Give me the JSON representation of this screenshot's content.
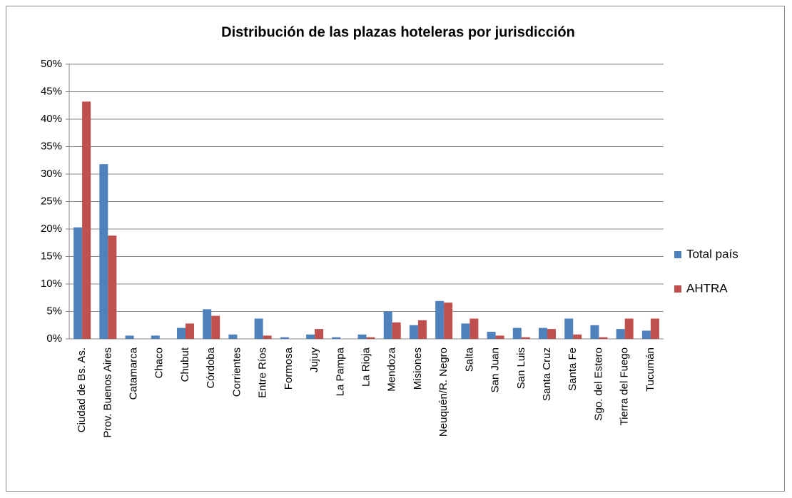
{
  "chart_data": {
    "type": "bar",
    "title": "Distribución de las plazas hoteleras por jurisdicción",
    "categories": [
      "Ciudad de Bs. As.",
      "Prov. Buenos Aires",
      "Catamarca",
      "Chaco",
      "Chubut",
      "Córdoba",
      "Corrientes",
      "Entre Ríos",
      "Formosa",
      "Jujuy",
      "La Pampa",
      "La Rioja",
      "Mendoza",
      "Misiones",
      "Neuquén/R. Negro",
      "Salta",
      "San Juan",
      "San Luis",
      "Santa Cruz",
      "Santa Fe",
      "Sgo. del Estero",
      "Tierra del Fuego",
      "Tucumán"
    ],
    "series": [
      {
        "name": "Total país",
        "color": "#4f81bd",
        "values": [
          20.3,
          31.8,
          0.6,
          0.6,
          2.0,
          5.4,
          0.8,
          3.7,
          0.3,
          0.8,
          0.3,
          0.8,
          5.0,
          2.5,
          6.9,
          2.8,
          1.3,
          2.0,
          2.0,
          3.7,
          2.5,
          1.8,
          1.5
        ]
      },
      {
        "name": "AHTRA",
        "color": "#c0504d",
        "values": [
          43.2,
          18.8,
          0,
          0,
          2.8,
          4.2,
          0,
          0.6,
          0,
          1.8,
          0,
          0.3,
          3.0,
          3.4,
          6.6,
          3.7,
          0.6,
          0.3,
          1.8,
          0.8,
          0.3,
          3.7,
          3.7
        ]
      }
    ],
    "ylim": [
      0,
      50
    ],
    "yticks": [
      {
        "value": 0,
        "label": "0%"
      },
      {
        "value": 5,
        "label": "5%"
      },
      {
        "value": 10,
        "label": "10%"
      },
      {
        "value": 15,
        "label": "15%"
      },
      {
        "value": 20,
        "label": "20%"
      },
      {
        "value": 25,
        "label": "25%"
      },
      {
        "value": 30,
        "label": "30%"
      },
      {
        "value": 35,
        "label": "35%"
      },
      {
        "value": 40,
        "label": "40%"
      },
      {
        "value": 45,
        "label": "45%"
      },
      {
        "value": 50,
        "label": "50%"
      }
    ],
    "grid": true,
    "legend": "right"
  }
}
